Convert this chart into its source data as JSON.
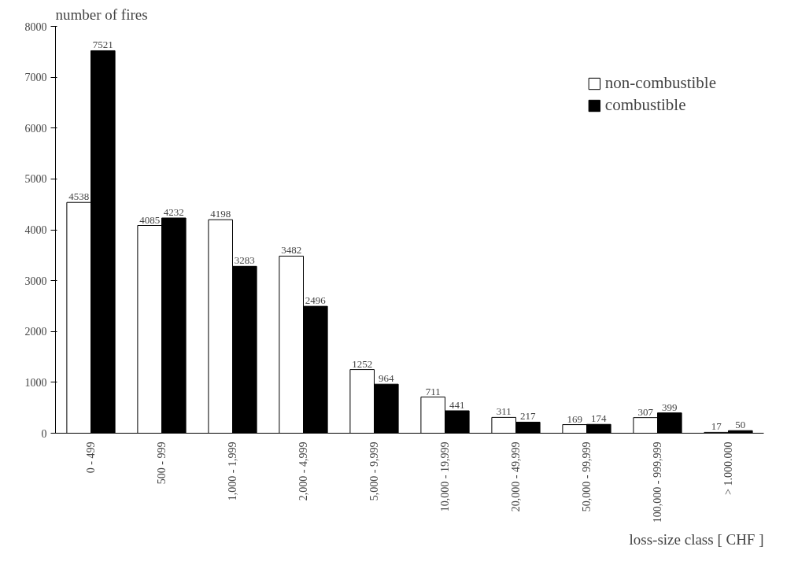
{
  "chart_data": {
    "type": "bar",
    "xlabel": "loss-size class [ CHF ]",
    "ylabel": "number of fires",
    "categories": [
      "0 - 499",
      "500 - 999",
      "1,000 - 1,999",
      "2,000 - 4,999",
      "5,000 - 9,999",
      "10,000 - 19,999",
      "20,000 - 49,999",
      "50,000 - 99,999",
      "100,000 - 999,999",
      "> 1.000.000"
    ],
    "series": [
      {
        "name": "non-combustible",
        "color": "#ffffff",
        "values": [
          4538,
          4085,
          4198,
          3482,
          1252,
          711,
          311,
          169,
          307,
          17
        ]
      },
      {
        "name": "combustible",
        "color": "#000000",
        "values": [
          7521,
          4232,
          3283,
          2496,
          964,
          441,
          217,
          174,
          399,
          50
        ]
      }
    ],
    "ylim": [
      0,
      8000
    ],
    "yticks": [
      0,
      1000,
      2000,
      3000,
      4000,
      5000,
      6000,
      7000,
      8000
    ],
    "data_labels": true,
    "grid": false,
    "legend": "top right"
  }
}
